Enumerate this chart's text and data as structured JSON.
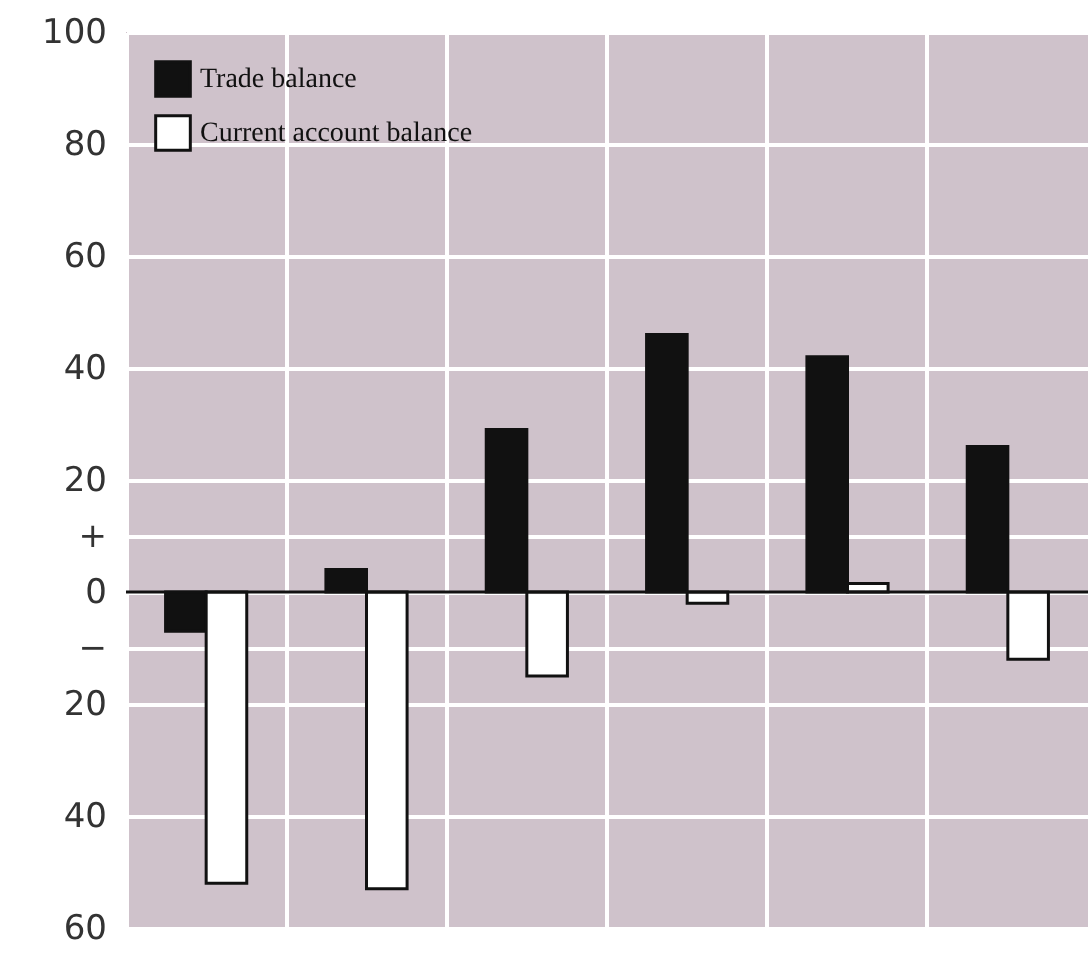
{
  "chart_data": {
    "type": "bar",
    "categories": [
      null,
      null,
      null,
      null,
      null,
      null
    ],
    "series": [
      {
        "name": "Trade balance",
        "color": "#111111",
        "values": [
          -7,
          4,
          29,
          46,
          42,
          26
        ]
      },
      {
        "name": "Current account balance",
        "color": "#ffffff",
        "values": [
          -52,
          -53,
          -15,
          -2,
          1.5,
          -12
        ]
      }
    ],
    "ylim": [
      -60,
      100
    ],
    "yticks": [
      {
        "value": -60,
        "label": "60"
      },
      {
        "value": -40,
        "label": "40"
      },
      {
        "value": -20,
        "label": "20"
      },
      {
        "value": -10,
        "label": "−"
      },
      0,
      {
        "value": 10,
        "label": "+"
      },
      20,
      40,
      60,
      80,
      100
    ],
    "ref_lines": [
      {
        "axis": "y",
        "value": 0,
        "color": "#111111"
      }
    ],
    "grid": true,
    "legend": "top left",
    "tick_labels": "y"
  }
}
